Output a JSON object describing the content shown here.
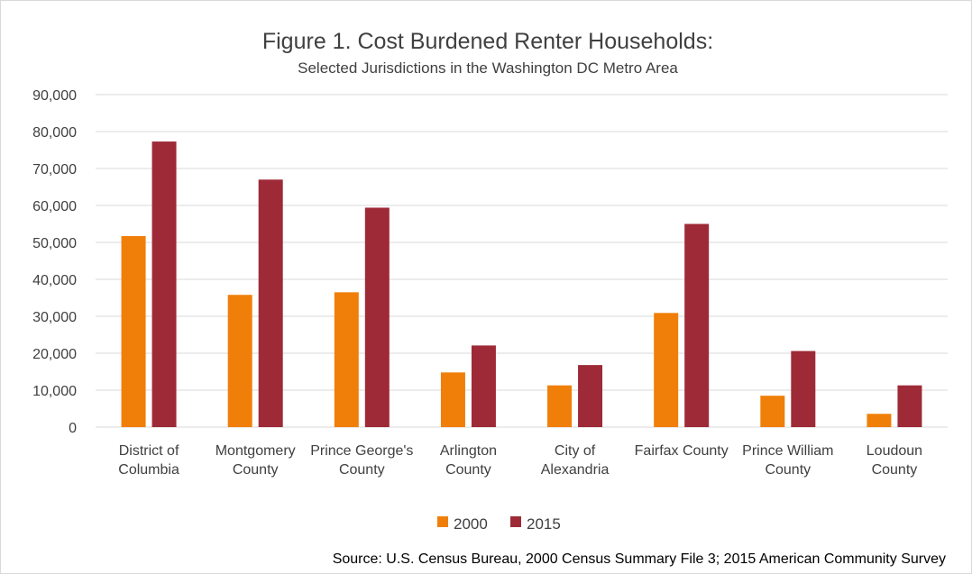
{
  "chart_data": {
    "type": "bar",
    "title": "Figure 1. Cost Burdened Renter Households:",
    "subtitle": "Selected Jurisdictions in the Washington DC Metro Area",
    "xlabel": "",
    "ylabel": "",
    "ylim": [
      0,
      90000
    ],
    "yticks": [
      0,
      10000,
      20000,
      30000,
      40000,
      50000,
      60000,
      70000,
      80000,
      90000
    ],
    "ytick_labels": [
      "0",
      "10,000",
      "20,000",
      "30,000",
      "40,000",
      "50,000",
      "60,000",
      "70,000",
      "80,000",
      "90,000"
    ],
    "grid": true,
    "legend_position": "bottom",
    "categories": [
      [
        "District of",
        "Columbia"
      ],
      [
        "Montgomery",
        "County"
      ],
      [
        "Prince George's",
        "County"
      ],
      [
        "Arlington",
        "County"
      ],
      [
        "City of",
        "Alexandria"
      ],
      [
        "Fairfax County"
      ],
      [
        "Prince William",
        "County"
      ],
      [
        "Loudoun",
        "County"
      ]
    ],
    "series": [
      {
        "name": "2000",
        "color": "#f07f09",
        "values": [
          51700,
          35800,
          36500,
          14800,
          11300,
          30900,
          8500,
          3600
        ]
      },
      {
        "name": "2015",
        "color": "#9e2a37",
        "values": [
          77300,
          67000,
          59400,
          22100,
          16800,
          55000,
          20600,
          11300
        ]
      }
    ],
    "source": "Source: U.S. Census Bureau, 2000 Census Summary File 3; 2015 American Community Survey"
  }
}
